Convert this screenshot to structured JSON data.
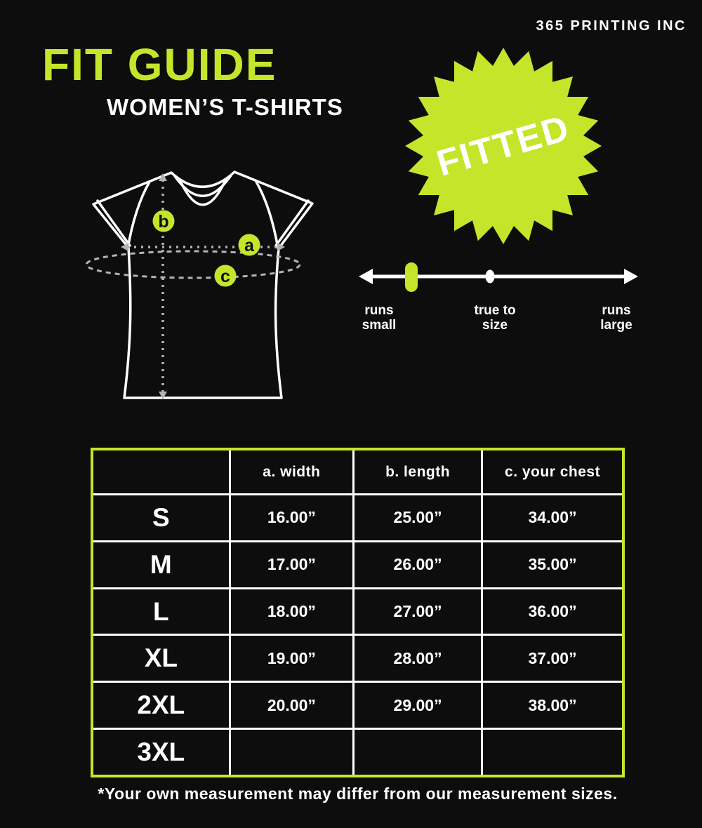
{
  "brand": "365 PRINTING INC",
  "title": "FIT GUIDE",
  "subtitle": "WOMEN’S T-SHIRTS",
  "fit_badge": "FITTED",
  "fit_scale": {
    "selected": "runs small",
    "labels": [
      [
        "runs",
        "small"
      ],
      [
        "true to",
        "size"
      ],
      [
        "runs",
        "large"
      ]
    ]
  },
  "diagram": {
    "marker_width": "a",
    "marker_length": "b",
    "marker_chest": "c"
  },
  "size_table": {
    "corner": "",
    "headers": [
      "a. width",
      "b. length",
      "c. your chest"
    ],
    "rows": [
      [
        "S",
        "16.00”",
        "25.00”",
        "34.00”"
      ],
      [
        "M",
        "17.00”",
        "26.00”",
        "35.00”"
      ],
      [
        "L",
        "18.00”",
        "27.00”",
        "36.00”"
      ],
      [
        "XL",
        "19.00”",
        "28.00”",
        "37.00”"
      ],
      [
        "2XL",
        "20.00”",
        "29.00”",
        "38.00”"
      ],
      [
        "3XL",
        "",
        "",
        ""
      ]
    ]
  },
  "footnote": "*Your own measurement may differ from our measurement sizes.",
  "colors": {
    "accent": "#c3e62a",
    "background": "#0d0d0d",
    "text": "#ffffff",
    "dotted_lines": "#b3b3b3"
  }
}
